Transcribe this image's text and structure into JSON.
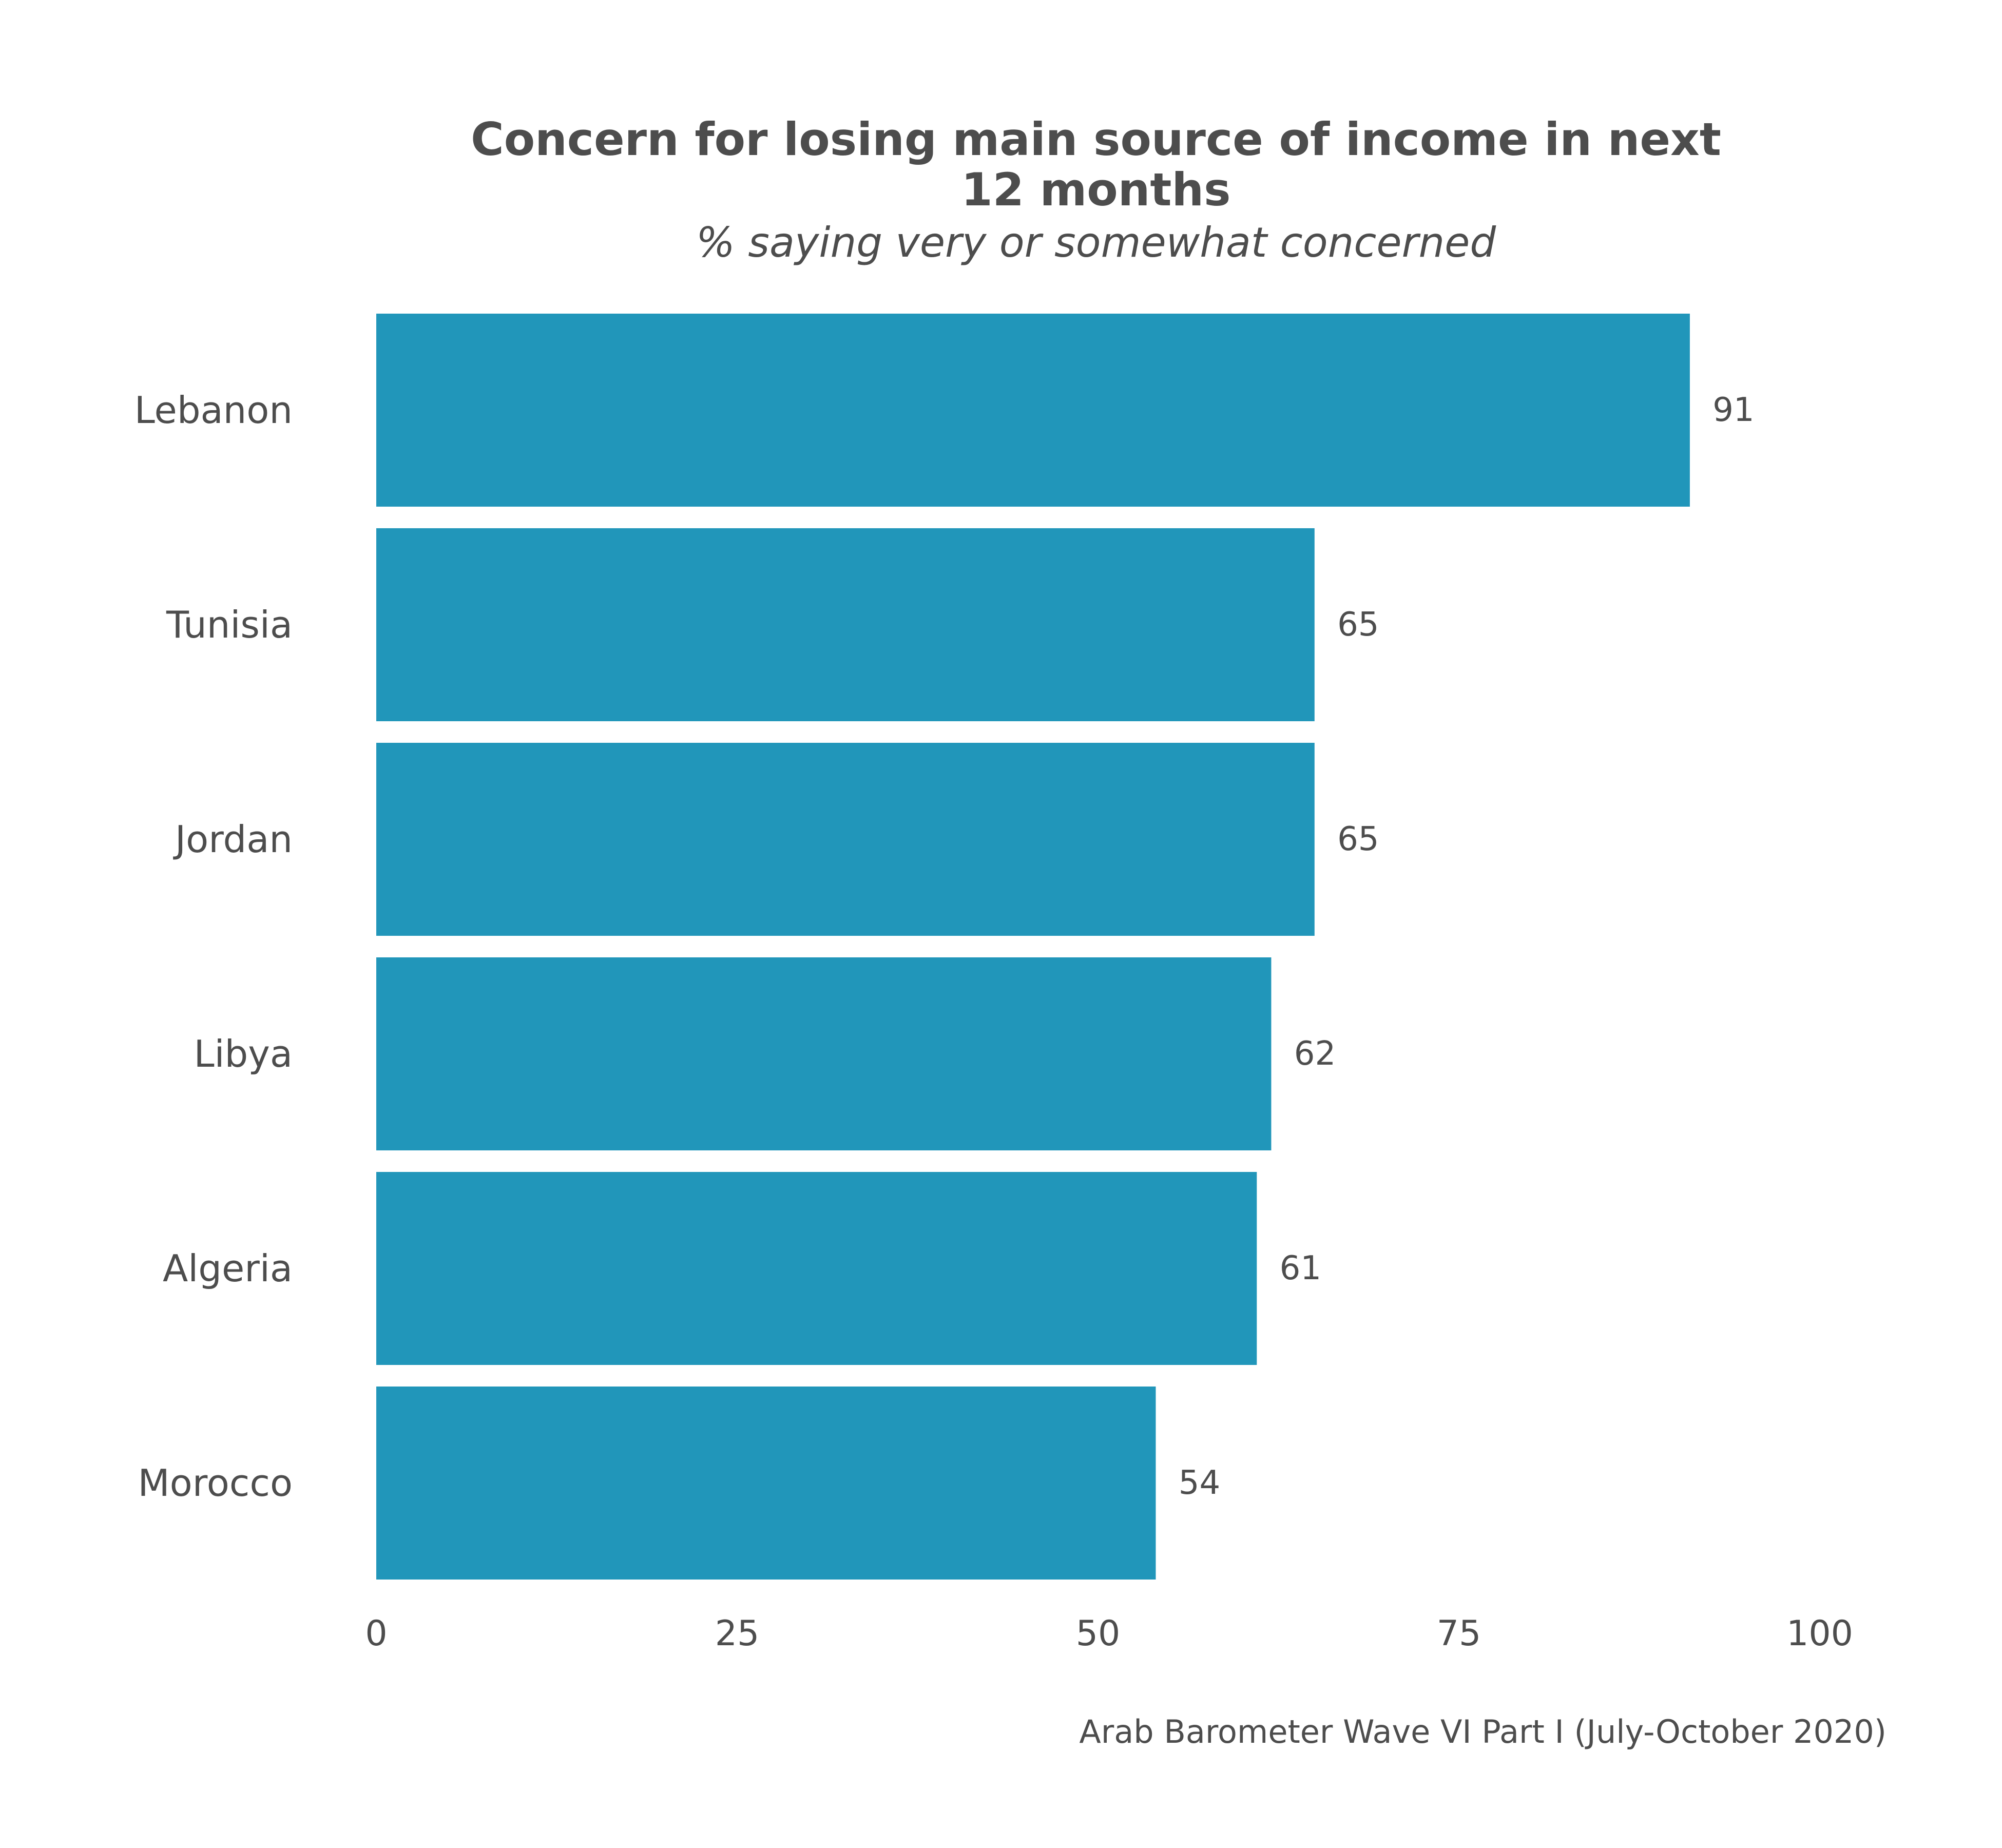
{
  "chart_data": {
    "type": "bar",
    "orientation": "horizontal",
    "title_lines": [
      "Concern for losing main source of income in next",
      "12 months"
    ],
    "subtitle": "% saying very or somewhat concerned",
    "caption": "Arab Barometer Wave VI Part I (July-October 2020)",
    "categories": [
      "Lebanon",
      "Tunisia",
      "Jordan",
      "Libya",
      "Algeria",
      "Morocco"
    ],
    "values": [
      91,
      65,
      65,
      62,
      61,
      54
    ],
    "value_labels": [
      "91",
      "65",
      "65",
      "62",
      "61",
      "54"
    ],
    "xlim": [
      0,
      100
    ],
    "xticks": [
      0,
      25,
      50,
      75,
      100
    ],
    "xtick_labels": [
      "0",
      "25",
      "50",
      "75",
      "100"
    ],
    "grid": false,
    "bar_color": "#2196ba"
  }
}
